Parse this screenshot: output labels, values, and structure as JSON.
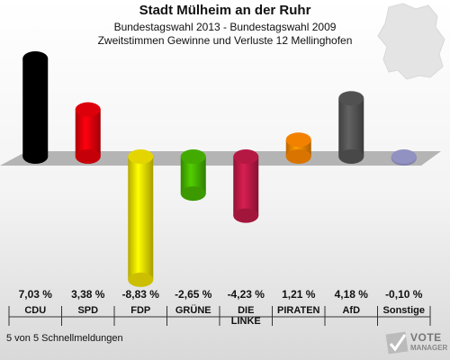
{
  "header": {
    "title": "Stadt Mülheim an der Ruhr",
    "subtitle1": "Bundestagswahl 2013 - Bundestagswahl 2009",
    "subtitle2": "Zweitstimmen Gewinne und Verluste 12 Mellinghofen"
  },
  "footer": {
    "status": "5 von 5 Schnellmeldungen"
  },
  "logo": {
    "line1": "VOTE",
    "line2": "MANAGER"
  },
  "chart_data": {
    "type": "bar",
    "categories": [
      "CDU",
      "SPD",
      "FDP",
      "GRÜNE",
      "DIE LINKE",
      "PIRATEN",
      "AfD",
      "Sonstige"
    ],
    "category_labels": [
      "CDU",
      "SPD",
      "FDP",
      "GRÜNE",
      "DIE\nLINKE",
      "PIRATEN",
      "AfD",
      "Sonstige"
    ],
    "values": [
      7.03,
      3.38,
      -8.83,
      -2.65,
      -4.23,
      1.21,
      4.18,
      -0.1
    ],
    "value_labels": [
      "7,03 %",
      "3,38 %",
      "-8,83 %",
      "-2,65 %",
      "-4,23 %",
      "1,21 %",
      "4,18 %",
      "-0,10 %"
    ],
    "colors": [
      "#000000",
      "#e8000b",
      "#f0e000",
      "#46b400",
      "#be1a47",
      "#ff8800",
      "#555555",
      "#9999cc"
    ],
    "title": "Stadt Mülheim an der Ruhr",
    "xlabel": "",
    "ylabel": "",
    "grid": false,
    "legend": "none"
  }
}
